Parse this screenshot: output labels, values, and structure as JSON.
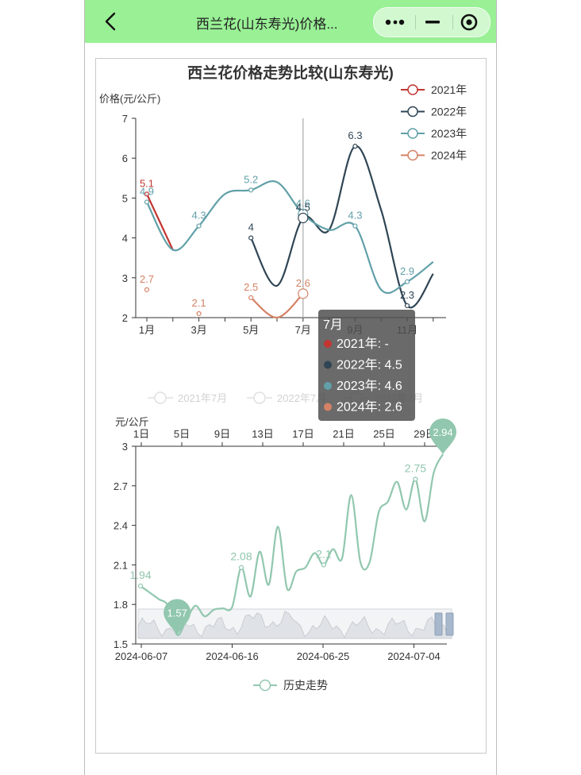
{
  "header": {
    "title": "西兰花(山东寿光)价格..."
  },
  "chart_data": [
    {
      "type": "line",
      "title": "西兰花价格走势比较(山东寿光)",
      "ylabel": "价格(元/公斤)",
      "ylim": [
        2,
        7
      ],
      "yticks": [
        "2",
        "3",
        "4",
        "5",
        "6",
        "7"
      ],
      "x": [
        1,
        2,
        3,
        4,
        5,
        6,
        7,
        8,
        9,
        10,
        11,
        12
      ],
      "xtick_labels": [
        "1月",
        "3月",
        "5月",
        "7月",
        "9月",
        "11月"
      ],
      "series": [
        {
          "name": "2021年",
          "color": "#c23531",
          "values": [
            5.1,
            3.7,
            null,
            null,
            null,
            null,
            null,
            null,
            null,
            null,
            null,
            null
          ]
        },
        {
          "name": "2022年",
          "color": "#2f4554",
          "values": [
            null,
            null,
            null,
            null,
            4.0,
            2.8,
            4.5,
            4.2,
            6.3,
            4.7,
            2.3,
            3.1
          ]
        },
        {
          "name": "2023年",
          "color": "#61a0a8",
          "values": [
            4.9,
            3.7,
            4.3,
            5.1,
            5.2,
            5.4,
            4.6,
            4.2,
            4.3,
            2.7,
            2.9,
            3.4
          ]
        },
        {
          "name": "2024年",
          "color": "#d48265",
          "values": [
            2.7,
            null,
            2.1,
            null,
            2.5,
            2.0,
            2.6,
            null,
            null,
            null,
            null,
            null
          ]
        }
      ],
      "point_labels": [
        {
          "series": "2021年",
          "x": 1,
          "text": "5.1"
        },
        {
          "series": "2023年",
          "x": 1,
          "text": "4.9"
        },
        {
          "series": "2024年",
          "x": 1,
          "text": "2.7"
        },
        {
          "series": "2023年",
          "x": 3,
          "text": "4.3"
        },
        {
          "series": "2024年",
          "x": 3,
          "text": "2.1"
        },
        {
          "series": "2023年",
          "x": 5,
          "text": "5.2"
        },
        {
          "series": "2022年",
          "x": 5,
          "text": "4"
        },
        {
          "series": "2024年",
          "x": 5,
          "text": "2.5"
        },
        {
          "series": "2023年",
          "x": 7,
          "text": "4.6"
        },
        {
          "series": "2022年",
          "x": 7,
          "text": "4.5"
        },
        {
          "series": "2024年",
          "x": 7,
          "text": "2.6"
        },
        {
          "series": "2022年",
          "x": 9,
          "text": "6.3"
        },
        {
          "series": "2023年",
          "x": 9,
          "text": "4.3"
        },
        {
          "series": "2023年",
          "x": 11,
          "text": "2.9"
        },
        {
          "series": "2022年",
          "x": 11,
          "text": "2.3"
        }
      ],
      "tooltip": {
        "title": "7月",
        "rows": [
          {
            "text": "2021年: -",
            "color": "#c23531"
          },
          {
            "text": "2022年: 4.5",
            "color": "#2f4554"
          },
          {
            "text": "2023年: 4.6",
            "color": "#61a0a8"
          },
          {
            "text": "2024年: 2.6",
            "color": "#d48265"
          }
        ]
      },
      "legend2": {
        "items": [
          "2021年7月",
          "2022年7月",
          "2023年7月"
        ]
      },
      "legend": "top-right"
    },
    {
      "type": "line",
      "ylabel": "元/公斤",
      "ylim": [
        1.5,
        3
      ],
      "yticks": [
        "1.5",
        "1.8",
        "2.1",
        "2.4",
        "2.7",
        "3"
      ],
      "top_ticks": [
        "1日",
        "5日",
        "9日",
        "13日",
        "17日",
        "21日",
        "25日",
        "29日"
      ],
      "xtick_labels": [
        "2024-06-07",
        "2024-06-16",
        "2024-06-25",
        "2024-07-04"
      ],
      "series": [
        {
          "name": "历史走势",
          "color": "#91c7ae",
          "values": [
            1.94,
            1.89,
            1.84,
            1.79,
            1.57,
            1.68,
            1.79,
            1.71,
            1.76,
            1.77,
            1.78,
            2.08,
            1.86,
            2.2,
            1.95,
            2.39,
            1.92,
            2.05,
            2.08,
            2.19,
            2.1,
            2.22,
            2.15,
            2.63,
            2.12,
            2.12,
            2.5,
            2.58,
            2.73,
            2.52,
            2.75,
            2.43,
            2.8,
            2.94
          ]
        }
      ],
      "value_labels": [
        {
          "index": 0,
          "text": "1.94"
        },
        {
          "index": 11,
          "text": "2.08"
        },
        {
          "index": 20,
          "text": "2.1"
        },
        {
          "index": 30,
          "text": "2.75"
        }
      ],
      "min_marker": {
        "index": 4,
        "text": "1.57"
      },
      "max_marker": {
        "index": 33,
        "text": "2.94"
      },
      "legend": "bottom-center"
    }
  ]
}
